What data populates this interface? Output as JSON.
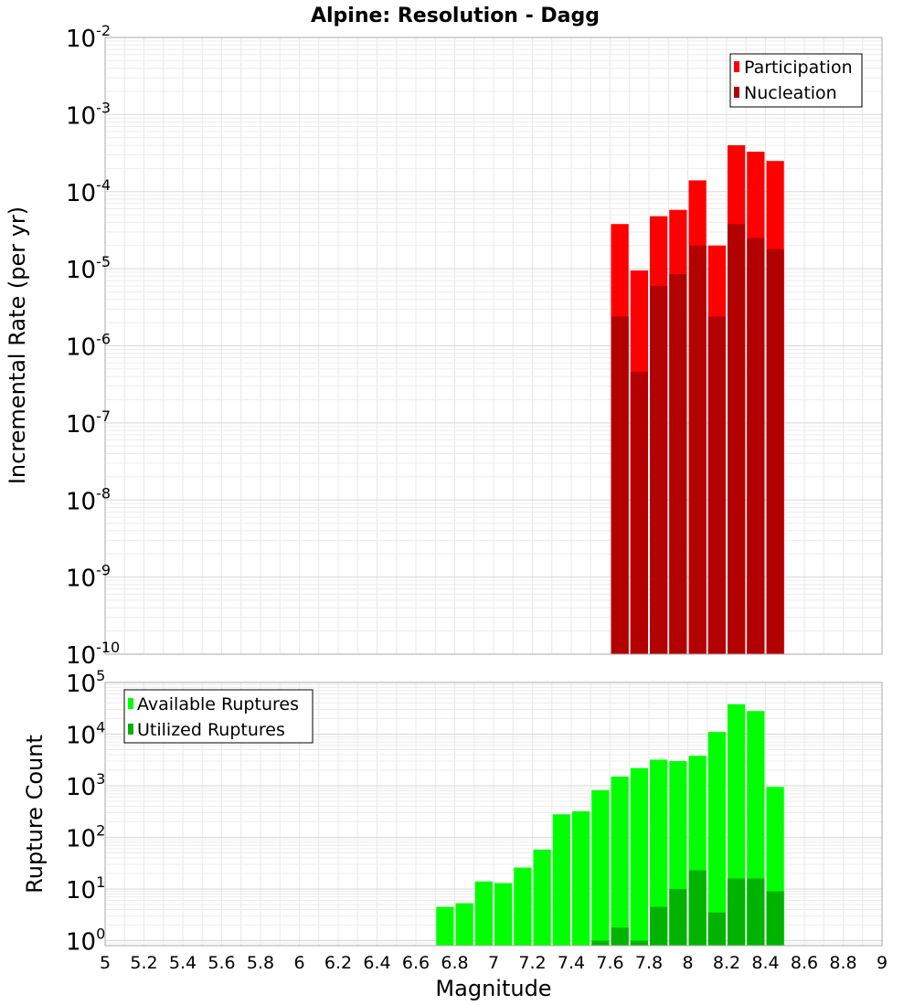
{
  "chart_data": [
    {
      "type": "bar",
      "title": "Alpine: Resolution - Dagg",
      "xlabel": "Magnitude",
      "ylabel": "Incremental Rate (per yr)",
      "yscale": "log",
      "xlim": [
        5,
        9
      ],
      "ylim": [
        1e-10,
        0.01
      ],
      "yticks": [
        {
          "base": "10",
          "exp": "-10"
        },
        {
          "base": "10",
          "exp": "-9"
        },
        {
          "base": "10",
          "exp": "-8"
        },
        {
          "base": "10",
          "exp": "-7"
        },
        {
          "base": "10",
          "exp": "-6"
        },
        {
          "base": "10",
          "exp": "-5"
        },
        {
          "base": "10",
          "exp": "-4"
        },
        {
          "base": "10",
          "exp": "-3"
        },
        {
          "base": "10",
          "exp": "-2"
        }
      ],
      "grid": true,
      "legend_position": "top-right",
      "x": [
        7.65,
        7.75,
        7.85,
        7.95,
        8.05,
        8.15,
        8.25,
        8.35,
        8.45
      ],
      "series": [
        {
          "name": "Participation",
          "color": "#ff0000",
          "values": [
            3.8e-05,
            9.5e-06,
            4.8e-05,
            5.8e-05,
            0.00014,
            2e-05,
            0.0004,
            0.00033,
            0.00025
          ]
        },
        {
          "name": "Nucleation",
          "color": "#b30000",
          "values": [
            2.4e-06,
            4.6e-07,
            6e-06,
            8.5e-06,
            2e-05,
            2.4e-06,
            3.8e-05,
            2.5e-05,
            1.8e-05
          ]
        }
      ]
    },
    {
      "type": "bar",
      "xlabel": "Magnitude",
      "ylabel": "Rupture Count",
      "yscale": "log",
      "xlim": [
        5,
        9
      ],
      "ylim": [
        0.8,
        100000
      ],
      "xticks": [
        "5",
        "5.2",
        "5.4",
        "5.6",
        "5.8",
        "6",
        "6.2",
        "6.4",
        "6.6",
        "6.8",
        "7",
        "7.2",
        "7.4",
        "7.6",
        "7.8",
        "8",
        "8.2",
        "8.4",
        "8.6",
        "8.8",
        "9"
      ],
      "yticks": [
        {
          "base": "10",
          "exp": "0"
        },
        {
          "base": "10",
          "exp": "1"
        },
        {
          "base": "10",
          "exp": "2"
        },
        {
          "base": "10",
          "exp": "3"
        },
        {
          "base": "10",
          "exp": "4"
        },
        {
          "base": "10",
          "exp": "5"
        }
      ],
      "grid": true,
      "legend_position": "top-left",
      "x": [
        6.75,
        6.85,
        6.95,
        7.05,
        7.15,
        7.25,
        7.35,
        7.45,
        7.55,
        7.65,
        7.75,
        7.85,
        7.95,
        8.05,
        8.15,
        8.25,
        8.35,
        8.45
      ],
      "series": [
        {
          "name": "Available Ruptures",
          "color": "#00ff00",
          "values": [
            4.5,
            5.3,
            14,
            13,
            26,
            58,
            280,
            320,
            820,
            1500,
            2200,
            3200,
            3000,
            3800,
            11000,
            38000,
            28000,
            950
          ]
        },
        {
          "name": "Utilized Ruptures",
          "color": "#00b300",
          "values": [
            0,
            0,
            0,
            0,
            0,
            0,
            0,
            0,
            1,
            1.8,
            1,
            4.5,
            10,
            23,
            3.5,
            16,
            16,
            9
          ]
        }
      ]
    }
  ]
}
